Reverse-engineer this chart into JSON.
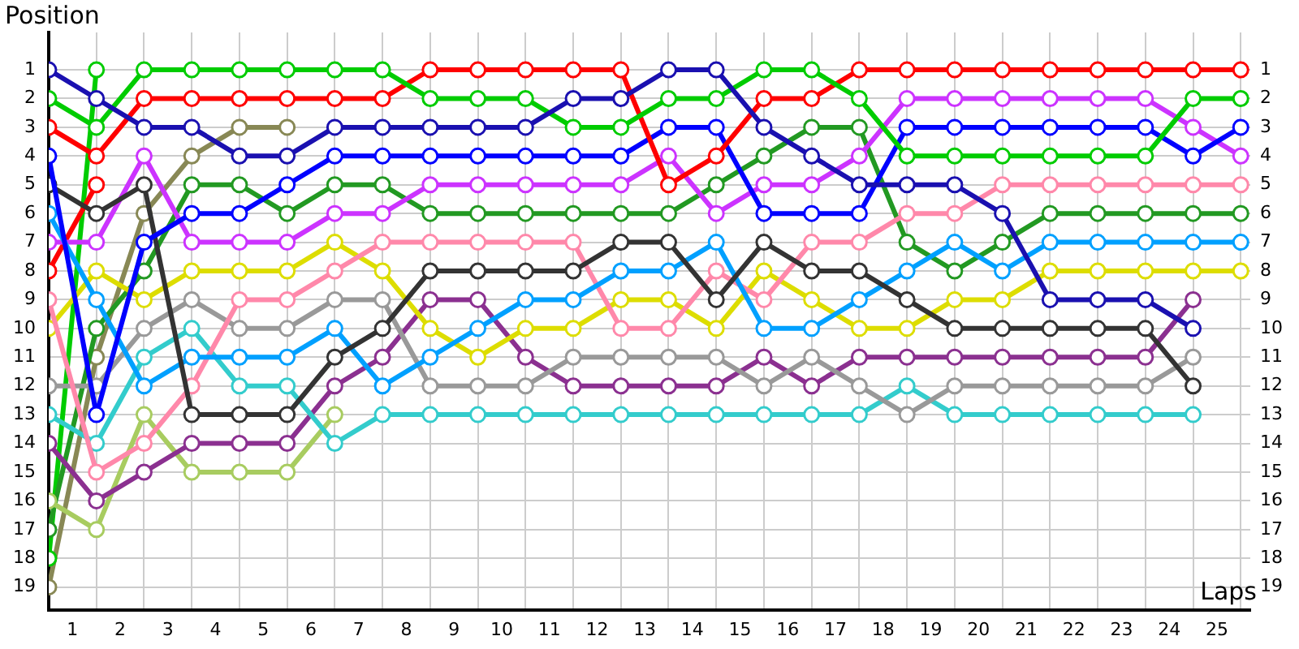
{
  "chart_data": {
    "type": "line",
    "xlabel": "Laps",
    "ylabel": "Position",
    "x": [
      0,
      1,
      2,
      3,
      4,
      5,
      6,
      7,
      8,
      9,
      10,
      11,
      12,
      13,
      14,
      15,
      16,
      17,
      18,
      19,
      20,
      21,
      22,
      23,
      24,
      25
    ],
    "xlim": [
      0,
      25.2
    ],
    "ylim": [
      19.8,
      -0.3
    ],
    "y2lim": [
      19.8,
      -0.3
    ],
    "xticks": [
      {
        "value": 0.5,
        "label": "1"
      },
      {
        "value": 1,
        "label": null
      },
      {
        "value": 1.5,
        "label": "2"
      },
      {
        "value": 2,
        "label": null
      },
      {
        "value": 2.5,
        "label": "3"
      },
      {
        "value": 3,
        "label": null
      },
      {
        "value": 3.5,
        "label": "4"
      },
      {
        "value": 4,
        "label": null
      },
      {
        "value": 4.5,
        "label": "5"
      },
      {
        "value": 5,
        "label": null
      },
      {
        "value": 5.5,
        "label": "6"
      },
      {
        "value": 6,
        "label": null
      },
      {
        "value": 6.5,
        "label": "7"
      },
      {
        "value": 7,
        "label": null
      },
      {
        "value": 7.5,
        "label": "8"
      },
      {
        "value": 8,
        "label": null
      },
      {
        "value": 8.5,
        "label": "9"
      },
      {
        "value": 9,
        "label": null
      },
      {
        "value": 9.5,
        "label": "10"
      },
      {
        "value": 10,
        "label": null
      },
      {
        "value": 10.5,
        "label": "11"
      },
      {
        "value": 11,
        "label": null
      },
      {
        "value": 11.5,
        "label": "12"
      },
      {
        "value": 12,
        "label": null
      },
      {
        "value": 12.5,
        "label": "13"
      },
      {
        "value": 13,
        "label": null
      },
      {
        "value": 13.5,
        "label": "14"
      },
      {
        "value": 14,
        "label": null
      },
      {
        "value": 14.5,
        "label": "15"
      },
      {
        "value": 15,
        "label": null
      },
      {
        "value": 15.5,
        "label": "16"
      },
      {
        "value": 16,
        "label": null
      },
      {
        "value": 16.5,
        "label": "17"
      },
      {
        "value": 17,
        "label": null
      },
      {
        "value": 17.5,
        "label": "18"
      },
      {
        "value": 18,
        "label": null
      },
      {
        "value": 18.5,
        "label": "19"
      },
      {
        "value": 19,
        "label": null
      },
      {
        "value": 19.5,
        "label": "20"
      },
      {
        "value": 20,
        "label": null
      },
      {
        "value": 20.5,
        "label": "21"
      },
      {
        "value": 21,
        "label": null
      },
      {
        "value": 21.5,
        "label": "22"
      },
      {
        "value": 22,
        "label": null
      },
      {
        "value": 22.5,
        "label": "23"
      },
      {
        "value": 23,
        "label": null
      },
      {
        "value": 23.5,
        "label": "24"
      },
      {
        "value": 24,
        "label": null
      },
      {
        "value": 24.5,
        "label": "25"
      },
      {
        "value": 25,
        "label": null
      }
    ],
    "yticks": [
      1,
      2,
      3,
      4,
      5,
      6,
      7,
      8,
      9,
      10,
      11,
      12,
      13,
      14,
      15,
      16,
      17,
      18,
      19
    ],
    "y2ticks": [
      1,
      2,
      3,
      4,
      5,
      6,
      7,
      8,
      9,
      10,
      11,
      12,
      13,
      14,
      15,
      16,
      17,
      18,
      19
    ],
    "grid": true,
    "legend": false,
    "marker": "circle",
    "line_style": "solid",
    "series": [
      {
        "color": "#1a10b0",
        "values": [
          1,
          2,
          3,
          3,
          4,
          4,
          3,
          3,
          3,
          3,
          3,
          2,
          2,
          1,
          1,
          3,
          4,
          5,
          5,
          5,
          6,
          9,
          9,
          9,
          10,
          null
        ]
      },
      {
        "color": "#00cc00",
        "values": [
          2,
          3,
          1,
          1,
          1,
          1,
          1,
          1,
          2,
          2,
          2,
          3,
          3,
          2,
          2,
          1,
          1,
          2,
          4,
          4,
          4,
          4,
          4,
          4,
          2,
          2
        ]
      },
      {
        "color": "#ff0000",
        "values": [
          3,
          4,
          2,
          2,
          2,
          2,
          2,
          2,
          1,
          1,
          1,
          1,
          1,
          5,
          4,
          2,
          2,
          1,
          1,
          1,
          1,
          1,
          1,
          1,
          1,
          1
        ]
      },
      {
        "color": "#0000ff",
        "values": [
          4,
          13,
          7,
          6,
          6,
          5,
          4,
          4,
          4,
          4,
          4,
          4,
          4,
          3,
          3,
          6,
          6,
          6,
          3,
          3,
          3,
          3,
          3,
          3,
          4,
          3
        ]
      },
      {
        "color": "#333333",
        "values": [
          5,
          6,
          5,
          13,
          13,
          13,
          11,
          10,
          8,
          8,
          8,
          8,
          7,
          7,
          9,
          7,
          8,
          8,
          9,
          10,
          10,
          10,
          10,
          10,
          12,
          null
        ]
      },
      {
        "color": "#00a0ff",
        "values": [
          6,
          9,
          12,
          11,
          11,
          11,
          10,
          12,
          11,
          10,
          9,
          9,
          8,
          8,
          7,
          10,
          10,
          9,
          8,
          7,
          8,
          7,
          7,
          7,
          7,
          7
        ]
      },
      {
        "color": "#cc33ff",
        "values": [
          7,
          7,
          4,
          7,
          7,
          7,
          6,
          6,
          5,
          5,
          5,
          5,
          5,
          4,
          6,
          5,
          5,
          4,
          2,
          2,
          2,
          2,
          2,
          2,
          3,
          4
        ]
      },
      {
        "color": "#ff0000",
        "values": [
          8,
          5,
          null,
          null,
          null,
          null,
          null,
          null,
          null,
          null,
          null,
          null,
          null,
          null,
          null,
          null,
          null,
          null,
          null,
          null,
          null,
          null,
          null,
          null,
          null,
          null
        ]
      },
      {
        "color": "#ff88aa",
        "values": [
          9,
          15,
          14,
          12,
          9,
          9,
          8,
          7,
          7,
          7,
          7,
          7,
          10,
          10,
          8,
          9,
          7,
          7,
          6,
          6,
          5,
          5,
          5,
          5,
          5,
          5
        ]
      },
      {
        "color": "#dddd00",
        "values": [
          10,
          8,
          9,
          8,
          8,
          8,
          7,
          8,
          10,
          11,
          10,
          10,
          9,
          9,
          10,
          8,
          9,
          10,
          10,
          9,
          9,
          8,
          8,
          8,
          8,
          8
        ]
      },
      {
        "color": "#999999",
        "values": [
          12,
          12,
          10,
          9,
          10,
          10,
          9,
          9,
          12,
          12,
          12,
          11,
          11,
          11,
          11,
          12,
          11,
          12,
          13,
          12,
          12,
          12,
          12,
          12,
          11,
          null
        ]
      },
      {
        "color": "#33cccc",
        "values": [
          13,
          14,
          11,
          10,
          12,
          12,
          14,
          13,
          13,
          13,
          13,
          13,
          13,
          13,
          13,
          13,
          13,
          13,
          12,
          13,
          13,
          13,
          13,
          13,
          13,
          null
        ]
      },
      {
        "color": "#8b3090",
        "values": [
          14,
          16,
          15,
          14,
          14,
          14,
          12,
          11,
          9,
          9,
          11,
          12,
          12,
          12,
          12,
          11,
          12,
          11,
          11,
          11,
          11,
          11,
          11,
          11,
          9,
          null
        ]
      },
      {
        "color": "#a8cc60",
        "values": [
          16,
          17,
          13,
          15,
          15,
          15,
          13,
          null,
          null,
          null,
          null,
          null,
          null,
          null,
          null,
          null,
          null,
          null,
          null,
          null,
          null,
          null,
          null,
          null,
          null,
          null
        ]
      },
      {
        "color": "#229922",
        "values": [
          17,
          10,
          8,
          5,
          5,
          6,
          5,
          5,
          6,
          6,
          6,
          6,
          6,
          6,
          5,
          4,
          3,
          3,
          7,
          8,
          7,
          6,
          6,
          6,
          6,
          6
        ]
      },
      {
        "color": "#00cc00",
        "values": [
          18,
          1,
          null,
          null,
          null,
          null,
          null,
          null,
          null,
          null,
          null,
          null,
          null,
          null,
          null,
          null,
          null,
          null,
          null,
          null,
          null,
          null,
          null,
          null,
          null,
          null
        ]
      },
      {
        "color": "#888855",
        "values": [
          19,
          11,
          6,
          4,
          3,
          3,
          null,
          null,
          null,
          null,
          null,
          null,
          null,
          null,
          null,
          null,
          null,
          null,
          null,
          null,
          null,
          null,
          null,
          null,
          null,
          null
        ]
      }
    ]
  }
}
